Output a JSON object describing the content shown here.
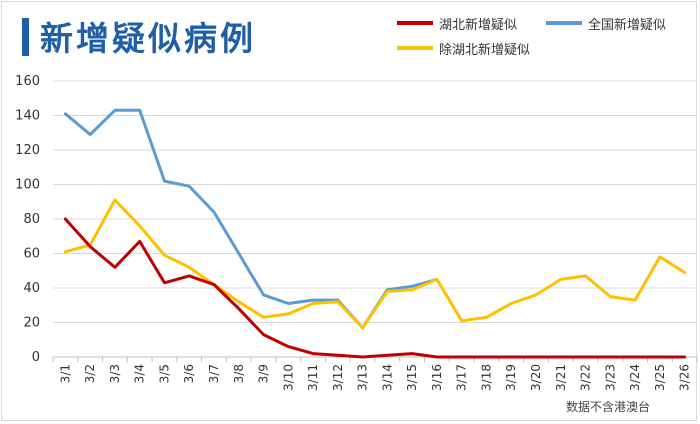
{
  "chart_data": {
    "type": "line",
    "title": "新增疑似病例",
    "categories": [
      "3/1",
      "3/2",
      "3/3",
      "3/4",
      "3/5",
      "3/6",
      "3/7",
      "3/8",
      "3/9",
      "3/10",
      "3/11",
      "3/12",
      "3/13",
      "3/14",
      "3/15",
      "3/16",
      "3/17",
      "3/18",
      "3/19",
      "3/20",
      "3/21",
      "3/22",
      "3/23",
      "3/24",
      "3/25",
      "3/26"
    ],
    "series": [
      {
        "name": "湖北新增疑似",
        "color": "#c00000",
        "values": [
          80,
          64,
          52,
          67,
          43,
          47,
          42,
          28,
          13,
          6,
          2,
          1,
          0,
          1,
          2,
          0,
          0,
          0,
          0,
          0,
          0,
          0,
          0,
          0,
          0,
          0
        ]
      },
      {
        "name": "全国新增疑似",
        "color": "#5b9bd5",
        "values": [
          141,
          129,
          143,
          143,
          102,
          99,
          84,
          60,
          36,
          31,
          33,
          33,
          17,
          39,
          41,
          45,
          null,
          null,
          null,
          null,
          null,
          null,
          null,
          null,
          null,
          null
        ]
      },
      {
        "name": "除湖北新增疑似",
        "color": "#ffc000",
        "values": [
          61,
          65,
          91,
          76,
          59,
          52,
          42,
          32,
          23,
          25,
          31,
          32,
          17,
          38,
          39,
          45,
          21,
          23,
          31,
          36,
          45,
          47,
          35,
          33,
          58,
          49
        ]
      }
    ],
    "ylim": [
      0,
      160
    ],
    "yticks": [
      0,
      20,
      40,
      60,
      80,
      100,
      120,
      140,
      160
    ],
    "grid": true,
    "legend": "top-right",
    "source_note": "数据不含港澳台"
  }
}
